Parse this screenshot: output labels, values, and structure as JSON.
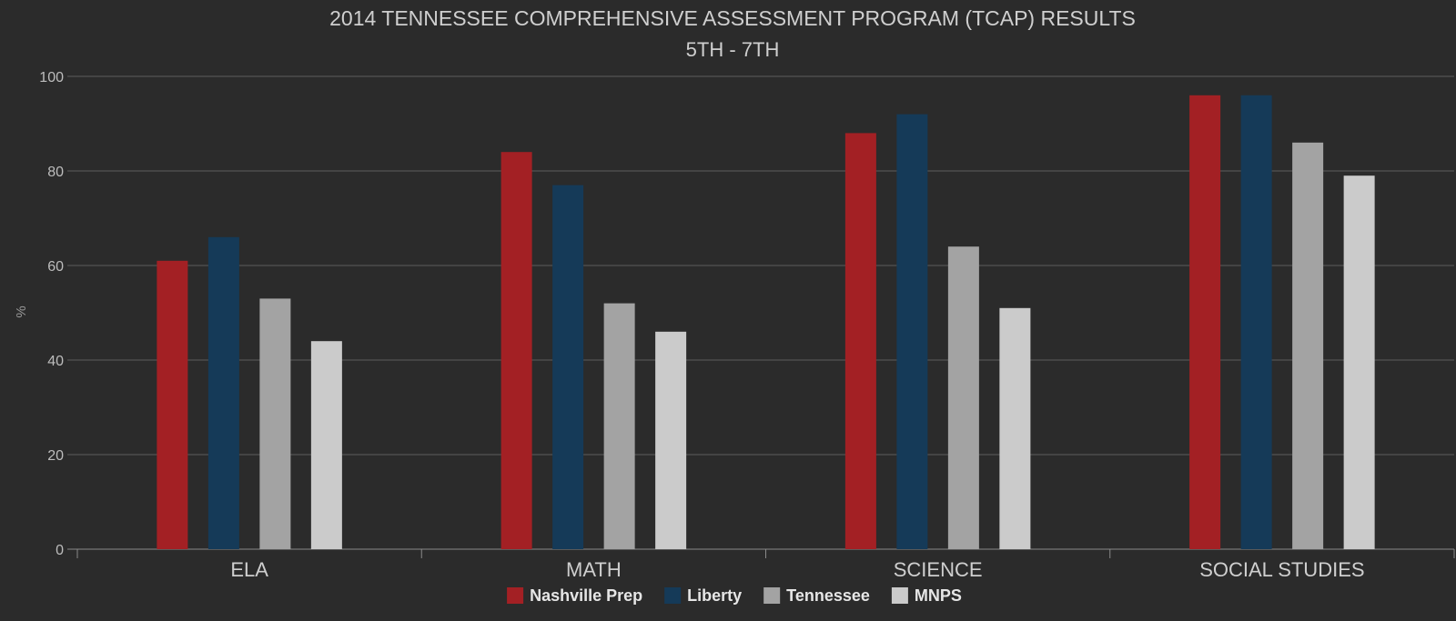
{
  "chart_data": {
    "type": "bar",
    "title": "2014 TENNESSEE COMPREHENSIVE ASSESSMENT PROGRAM (TCAP) RESULTS",
    "subtitle": "5TH - 7TH",
    "xlabel": "",
    "ylabel": "%",
    "ylim": [
      0,
      100
    ],
    "yticks": [
      0,
      20,
      40,
      60,
      80,
      100
    ],
    "grid": true,
    "legend_position": "bottom",
    "categories": [
      "ELA",
      "MATH",
      "SCIENCE",
      "SOCIAL STUDIES"
    ],
    "series": [
      {
        "name": "Nashville Prep",
        "color": "#a32024",
        "values": [
          61,
          84,
          88,
          96
        ]
      },
      {
        "name": "Liberty",
        "color": "#153a58",
        "values": [
          66,
          77,
          92,
          96
        ]
      },
      {
        "name": "Tennessee",
        "color": "#a3a3a3",
        "values": [
          53,
          52,
          64,
          86
        ]
      },
      {
        "name": "MNPS",
        "color": "#cbcbcb",
        "values": [
          44,
          46,
          51,
          79
        ]
      }
    ]
  }
}
